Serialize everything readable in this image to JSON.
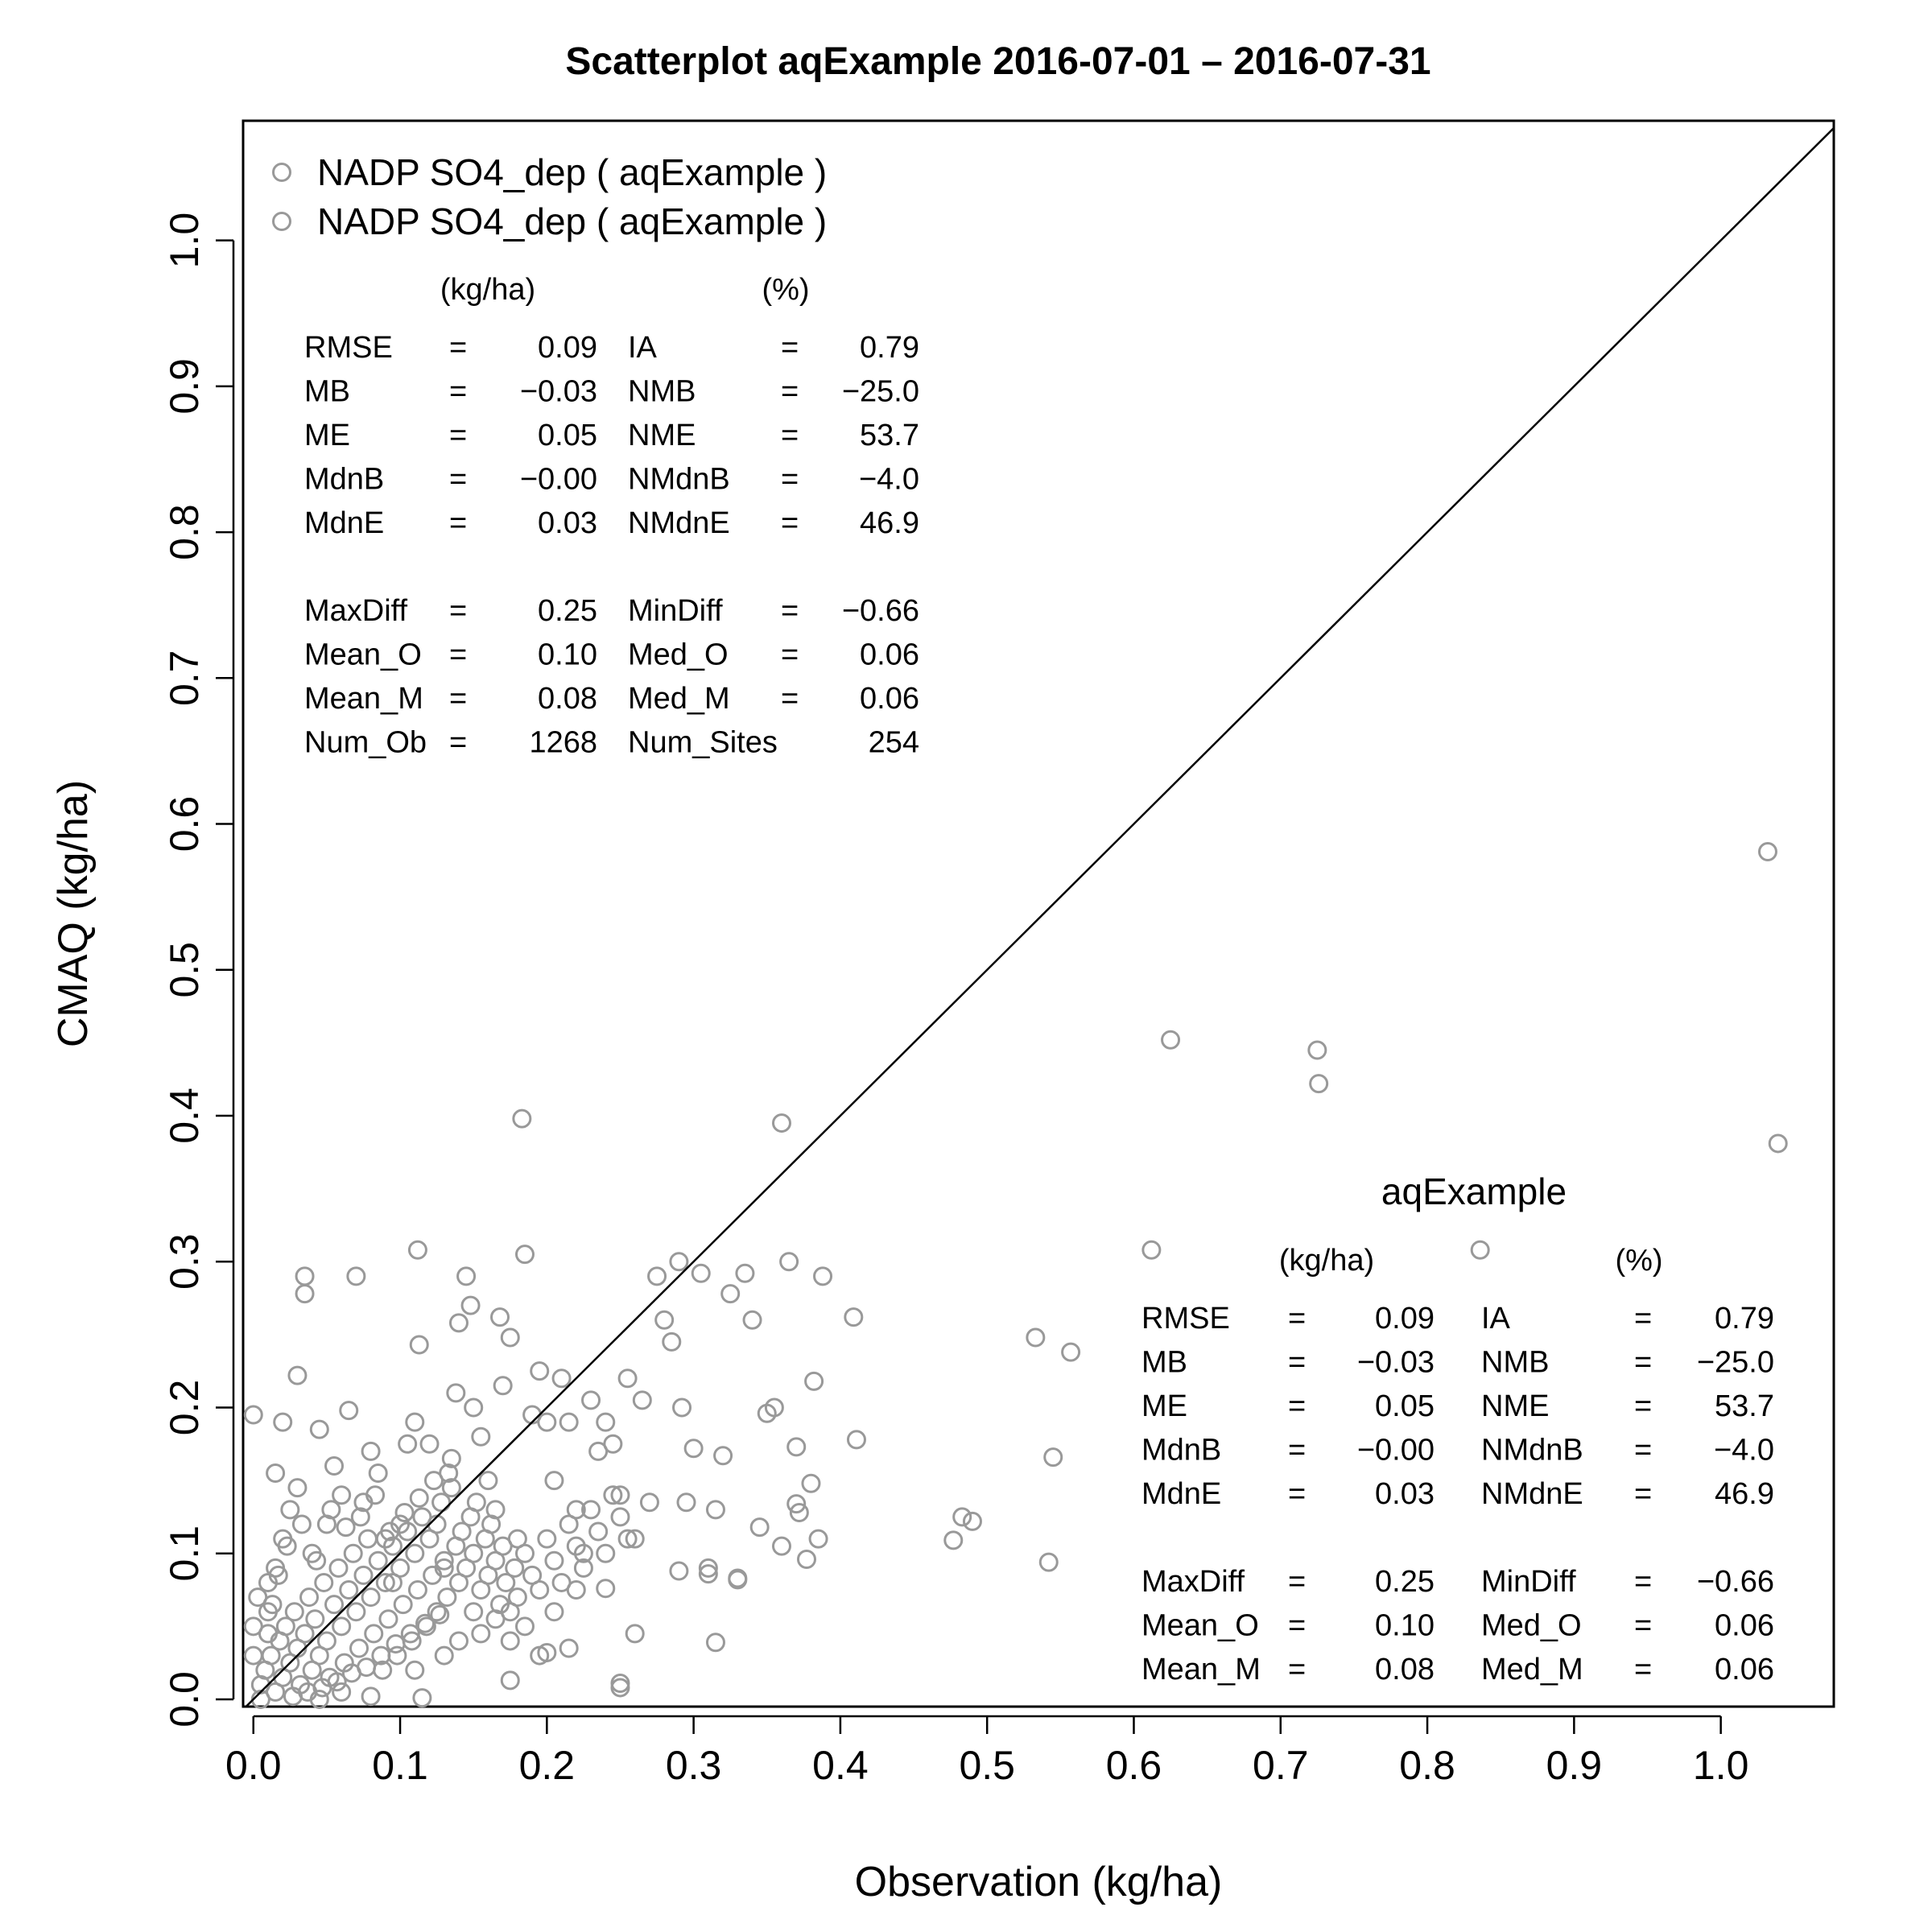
{
  "chart_data": {
    "type": "scatter",
    "title": "Scatterplot aqExample 2016-07-01 – 2016-07-31",
    "xlabel": "Observation (kg/ha)",
    "ylabel": "CMAQ (kg/ha)",
    "xlim": [
      -0.007,
      1.077
    ],
    "ylim": [
      -0.005,
      1.082
    ],
    "x_ticks": [
      "0.0",
      "0.1",
      "0.2",
      "0.3",
      "0.4",
      "0.5",
      "0.6",
      "0.7",
      "0.8",
      "0.9",
      "1.0"
    ],
    "y_ticks": [
      "0.0",
      "0.1",
      "0.2",
      "0.3",
      "0.4",
      "0.5",
      "0.6",
      "0.7",
      "0.8",
      "0.9",
      "1.0"
    ],
    "grid": false,
    "reference_line": "1:1",
    "marker_color": "#999999",
    "legend": {
      "placement": "top-left",
      "entries": [
        "NADP SO4_dep ( aqExample )",
        "NADP SO4_dep ( aqExample )"
      ]
    },
    "series": [
      {
        "name": "NADP SO4_dep ( aqExample )",
        "points": [
          [
            0.0,
            0.195
          ],
          [
            0.01,
            0.08
          ],
          [
            0.015,
            0.155
          ],
          [
            0.02,
            0.19
          ],
          [
            0.03,
            0.222
          ],
          [
            0.035,
            0.278
          ],
          [
            0.035,
            0.29
          ],
          [
            0.04,
            0.1
          ],
          [
            0.045,
            0.185
          ],
          [
            0.05,
            0.12
          ],
          [
            0.055,
            0.16
          ],
          [
            0.06,
            0.14
          ],
          [
            0.065,
            0.198
          ],
          [
            0.07,
            0.29
          ],
          [
            0.075,
            0.135
          ],
          [
            0.08,
            0.17
          ],
          [
            0.085,
            0.155
          ],
          [
            0.09,
            0.11
          ],
          [
            0.095,
            0.08
          ],
          [
            0.1,
            0.12
          ],
          [
            0.105,
            0.175
          ],
          [
            0.11,
            0.19
          ],
          [
            0.112,
            0.308
          ],
          [
            0.113,
            0.243
          ],
          [
            0.12,
            0.175
          ],
          [
            0.125,
            0.12
          ],
          [
            0.13,
            0.09
          ],
          [
            0.135,
            0.165
          ],
          [
            0.138,
            0.21
          ],
          [
            0.14,
            0.258
          ],
          [
            0.145,
            0.29
          ],
          [
            0.148,
            0.27
          ],
          [
            0.15,
            0.2
          ],
          [
            0.155,
            0.18
          ],
          [
            0.16,
            0.15
          ],
          [
            0.165,
            0.13
          ],
          [
            0.168,
            0.262
          ],
          [
            0.17,
            0.215
          ],
          [
            0.175,
            0.248
          ],
          [
            0.18,
            0.11
          ],
          [
            0.183,
            0.398
          ],
          [
            0.185,
            0.305
          ],
          [
            0.19,
            0.195
          ],
          [
            0.195,
            0.225
          ],
          [
            0.2,
            0.19
          ],
          [
            0.205,
            0.15
          ],
          [
            0.21,
            0.22
          ],
          [
            0.215,
            0.19
          ],
          [
            0.22,
            0.13
          ],
          [
            0.225,
            0.1
          ],
          [
            0.23,
            0.205
          ],
          [
            0.235,
            0.17
          ],
          [
            0.24,
            0.19
          ],
          [
            0.245,
            0.175
          ],
          [
            0.25,
            0.14
          ],
          [
            0.255,
            0.22
          ],
          [
            0.26,
            0.11
          ],
          [
            0.265,
            0.205
          ],
          [
            0.27,
            0.135
          ],
          [
            0.275,
            0.29
          ],
          [
            0.28,
            0.26
          ],
          [
            0.285,
            0.245
          ],
          [
            0.29,
            0.3
          ],
          [
            0.292,
            0.2
          ],
          [
            0.295,
            0.135
          ],
          [
            0.3,
            0.172
          ],
          [
            0.305,
            0.292
          ],
          [
            0.31,
            0.09
          ],
          [
            0.315,
            0.13
          ],
          [
            0.32,
            0.167
          ],
          [
            0.325,
            0.278
          ],
          [
            0.33,
            0.082
          ],
          [
            0.335,
            0.292
          ],
          [
            0.34,
            0.26
          ],
          [
            0.345,
            0.118
          ],
          [
            0.35,
            0.196
          ],
          [
            0.355,
            0.2
          ],
          [
            0.36,
            0.395
          ],
          [
            0.365,
            0.3
          ],
          [
            0.37,
            0.173
          ],
          [
            0.372,
            0.128
          ],
          [
            0.377,
            0.096
          ],
          [
            0.382,
            0.218
          ],
          [
            0.388,
            0.29
          ],
          [
            0.409,
            0.262
          ],
          [
            0.411,
            0.178
          ],
          [
            0.477,
            0.109
          ],
          [
            0.483,
            0.125
          ],
          [
            0.49,
            0.122
          ],
          [
            0.533,
            0.248
          ],
          [
            0.542,
            0.094
          ],
          [
            0.545,
            0.166
          ],
          [
            0.557,
            0.238
          ],
          [
            0.612,
            0.308
          ],
          [
            0.625,
            0.452
          ],
          [
            0.725,
            0.445
          ],
          [
            0.726,
            0.422
          ],
          [
            0.836,
            0.308
          ],
          [
            1.032,
            0.581
          ],
          [
            1.039,
            0.381
          ],
          [
            0.25,
            0.011
          ],
          [
            0.25,
            0.008
          ],
          [
            0.115,
            0.001
          ],
          [
            0.175,
            0.013
          ],
          [
            0.315,
            0.039
          ],
          [
            0.2,
            0.032
          ],
          [
            0.24,
            0.076
          ],
          [
            0.26,
            0.045
          ],
          [
            0.29,
            0.088
          ],
          [
            0.31,
            0.086
          ],
          [
            0.33,
            0.083
          ],
          [
            0.36,
            0.105
          ],
          [
            0.385,
            0.11
          ],
          [
            0.38,
            0.148
          ],
          [
            0.37,
            0.134
          ],
          [
            0.215,
            0.035
          ],
          [
            0.205,
            0.06
          ],
          [
            0.22,
            0.075
          ],
          [
            0.15,
            0.06
          ],
          [
            0.14,
            0.04
          ],
          [
            0.005,
            0.01
          ],
          [
            0.008,
            0.02
          ],
          [
            0.012,
            0.03
          ],
          [
            0.015,
            0.005
          ],
          [
            0.018,
            0.04
          ],
          [
            0.02,
            0.015
          ],
          [
            0.022,
            0.05
          ],
          [
            0.025,
            0.025
          ],
          [
            0.028,
            0.06
          ],
          [
            0.03,
            0.035
          ],
          [
            0.032,
            0.01
          ],
          [
            0.035,
            0.045
          ],
          [
            0.038,
            0.07
          ],
          [
            0.04,
            0.02
          ],
          [
            0.042,
            0.055
          ],
          [
            0.045,
            0.03
          ],
          [
            0.048,
            0.08
          ],
          [
            0.05,
            0.04
          ],
          [
            0.052,
            0.015
          ],
          [
            0.055,
            0.065
          ],
          [
            0.058,
            0.09
          ],
          [
            0.06,
            0.05
          ],
          [
            0.062,
            0.025
          ],
          [
            0.065,
            0.075
          ],
          [
            0.068,
            0.1
          ],
          [
            0.07,
            0.06
          ],
          [
            0.072,
            0.035
          ],
          [
            0.075,
            0.085
          ],
          [
            0.078,
            0.11
          ],
          [
            0.08,
            0.07
          ],
          [
            0.082,
            0.045
          ],
          [
            0.085,
            0.095
          ],
          [
            0.088,
            0.02
          ],
          [
            0.09,
            0.08
          ],
          [
            0.092,
            0.055
          ],
          [
            0.095,
            0.105
          ],
          [
            0.098,
            0.03
          ],
          [
            0.1,
            0.09
          ],
          [
            0.102,
            0.065
          ],
          [
            0.105,
            0.115
          ],
          [
            0.108,
            0.04
          ],
          [
            0.11,
            0.1
          ],
          [
            0.112,
            0.075
          ],
          [
            0.115,
            0.125
          ],
          [
            0.118,
            0.05
          ],
          [
            0.12,
            0.11
          ],
          [
            0.122,
            0.085
          ],
          [
            0.125,
            0.06
          ],
          [
            0.128,
            0.135
          ],
          [
            0.13,
            0.095
          ],
          [
            0.132,
            0.07
          ],
          [
            0.135,
            0.145
          ],
          [
            0.138,
            0.105
          ],
          [
            0.14,
            0.08
          ],
          [
            0.142,
            0.115
          ],
          [
            0.145,
            0.09
          ],
          [
            0.148,
            0.125
          ],
          [
            0.15,
            0.1
          ],
          [
            0.152,
            0.135
          ],
          [
            0.155,
            0.075
          ],
          [
            0.158,
            0.11
          ],
          [
            0.16,
            0.085
          ],
          [
            0.162,
            0.12
          ],
          [
            0.165,
            0.095
          ],
          [
            0.168,
            0.065
          ],
          [
            0.17,
            0.105
          ],
          [
            0.172,
            0.08
          ],
          [
            0.175,
            0.06
          ],
          [
            0.178,
            0.09
          ],
          [
            0.18,
            0.07
          ],
          [
            0.185,
            0.1
          ],
          [
            0.19,
            0.085
          ],
          [
            0.195,
            0.075
          ],
          [
            0.2,
            0.11
          ],
          [
            0.205,
            0.095
          ],
          [
            0.21,
            0.08
          ],
          [
            0.215,
            0.12
          ],
          [
            0.22,
            0.105
          ],
          [
            0.225,
            0.09
          ],
          [
            0.23,
            0.13
          ],
          [
            0.235,
            0.115
          ],
          [
            0.24,
            0.1
          ],
          [
            0.245,
            0.14
          ],
          [
            0.25,
            0.125
          ],
          [
            0.255,
            0.11
          ],
          [
            0.01,
            0.06
          ],
          [
            0.015,
            0.09
          ],
          [
            0.02,
            0.11
          ],
          [
            0.025,
            0.13
          ],
          [
            0.03,
            0.145
          ],
          [
            0.0,
            0.03
          ],
          [
            0.0,
            0.05
          ],
          [
            0.003,
            0.07
          ],
          [
            0.005,
            0.0
          ],
          [
            0.01,
            0.045
          ],
          [
            0.013,
            0.065
          ],
          [
            0.017,
            0.085
          ],
          [
            0.023,
            0.105
          ],
          [
            0.027,
            0.002
          ],
          [
            0.033,
            0.12
          ],
          [
            0.037,
            0.005
          ],
          [
            0.043,
            0.095
          ],
          [
            0.047,
            0.008
          ],
          [
            0.053,
            0.13
          ],
          [
            0.057,
            0.012
          ],
          [
            0.063,
            0.118
          ],
          [
            0.067,
            0.018
          ],
          [
            0.073,
            0.125
          ],
          [
            0.077,
            0.022
          ],
          [
            0.083,
            0.14
          ],
          [
            0.087,
            0.03
          ],
          [
            0.093,
            0.115
          ],
          [
            0.097,
            0.038
          ],
          [
            0.103,
            0.128
          ],
          [
            0.107,
            0.045
          ],
          [
            0.113,
            0.138
          ],
          [
            0.117,
            0.052
          ],
          [
            0.123,
            0.15
          ],
          [
            0.127,
            0.058
          ],
          [
            0.133,
            0.155
          ],
          [
            0.08,
            0.002
          ],
          [
            0.06,
            0.005
          ],
          [
            0.045,
            0.0
          ],
          [
            0.11,
            0.02
          ],
          [
            0.13,
            0.03
          ],
          [
            0.155,
            0.045
          ],
          [
            0.165,
            0.055
          ],
          [
            0.175,
            0.04
          ],
          [
            0.185,
            0.05
          ],
          [
            0.195,
            0.03
          ]
        ]
      }
    ],
    "stats_tables": [
      {
        "placement": "top-left",
        "site_label": "",
        "units": [
          "(kg/ha)",
          "(%)"
        ],
        "rows": [
          [
            "RMSE",
            "=",
            "0.09",
            "IA",
            "=",
            "0.79"
          ],
          [
            "MB",
            "=",
            "−0.03",
            "NMB",
            "=",
            "−25.0"
          ],
          [
            "ME",
            "=",
            "0.05",
            "NME",
            "=",
            "53.7"
          ],
          [
            "MdnB",
            "=",
            "−0.00",
            "NMdnB",
            "=",
            "−4.0"
          ],
          [
            "MdnE",
            "=",
            "0.03",
            "NMdnE",
            "=",
            "46.9"
          ],
          [
            "",
            "",
            "",
            "",
            "",
            ""
          ],
          [
            "MaxDiff",
            "=",
            "0.25",
            "MinDiff",
            "=",
            "−0.66"
          ],
          [
            "Mean_O",
            "=",
            "0.10",
            "Med_O",
            "=",
            "0.06"
          ],
          [
            "Mean_M",
            "=",
            "0.08",
            "Med_M",
            "=",
            "0.06"
          ],
          [
            "Num_Ob",
            "=",
            "1268",
            "Num_Sites",
            "",
            "254"
          ]
        ]
      },
      {
        "placement": "bottom-right",
        "site_label": "aqExample",
        "units": [
          "(kg/ha)",
          "(%)"
        ],
        "rows": [
          [
            "RMSE",
            "=",
            "0.09",
            "IA",
            "=",
            "0.79"
          ],
          [
            "MB",
            "=",
            "−0.03",
            "NMB",
            "=",
            "−25.0"
          ],
          [
            "ME",
            "=",
            "0.05",
            "NME",
            "=",
            "53.7"
          ],
          [
            "MdnB",
            "=",
            "−0.00",
            "NMdnB",
            "=",
            "−4.0"
          ],
          [
            "MdnE",
            "=",
            "0.03",
            "NMdnE",
            "=",
            "46.9"
          ],
          [
            "",
            "",
            "",
            "",
            "",
            ""
          ],
          [
            "MaxDiff",
            "=",
            "0.25",
            "MinDiff",
            "=",
            "−0.66"
          ],
          [
            "Mean_O",
            "=",
            "0.10",
            "Med_O",
            "=",
            "0.06"
          ],
          [
            "Mean_M",
            "=",
            "0.08",
            "Med_M",
            "=",
            "0.06"
          ]
        ]
      }
    ]
  }
}
